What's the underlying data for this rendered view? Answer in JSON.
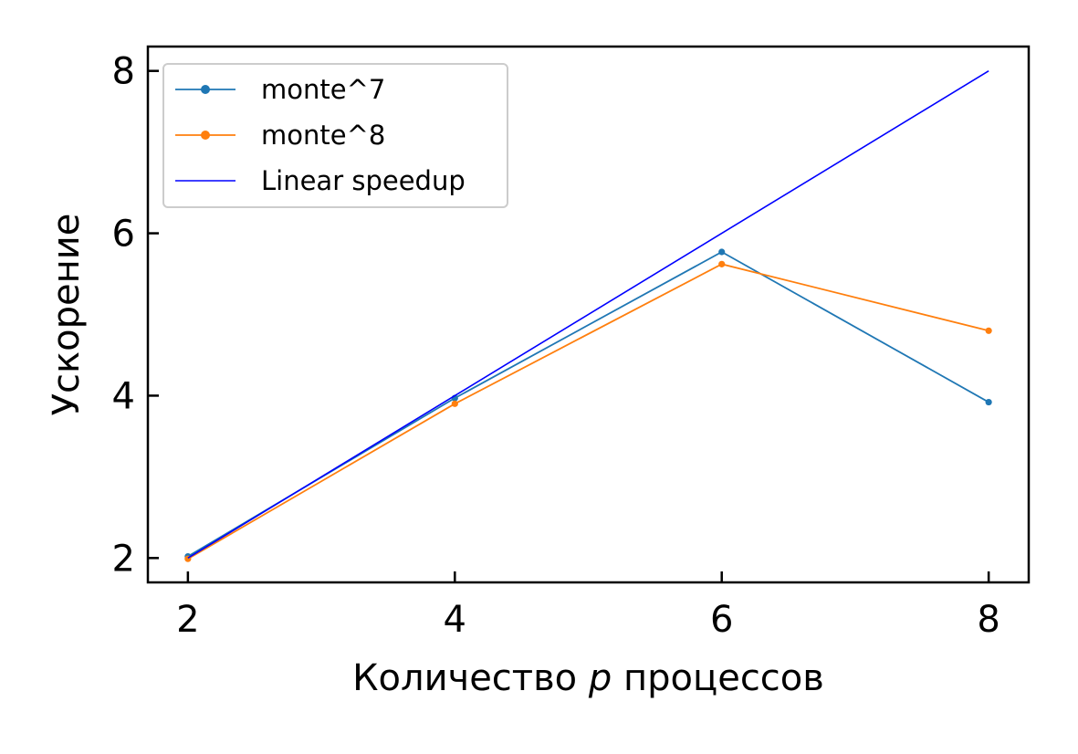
{
  "chart_data": {
    "type": "line",
    "xlabel_parts": {
      "before": "Количество ",
      "italic": "p",
      "after": " процессов"
    },
    "ylabel": "Ускорение",
    "xlim": [
      1.7,
      8.3
    ],
    "ylim": [
      1.7,
      8.3
    ],
    "xticks": [
      "2",
      "4",
      "6",
      "8"
    ],
    "yticks": [
      "2",
      "4",
      "6",
      "8"
    ],
    "grid": false,
    "legend_placement": "top-left",
    "series": [
      {
        "name": "monte^7",
        "color": "#1f77b4",
        "marker": "dot",
        "x": [
          2,
          4,
          6,
          8
        ],
        "y": [
          2.02,
          3.97,
          5.77,
          3.92
        ]
      },
      {
        "name": "monte^8",
        "color": "#ff7f0e",
        "marker": "dot",
        "x": [
          2,
          4,
          6,
          8
        ],
        "y": [
          1.99,
          3.9,
          5.62,
          4.8
        ]
      },
      {
        "name": "Linear speedup",
        "color": "#0000ff",
        "marker": "none",
        "x": [
          2,
          4,
          6,
          8
        ],
        "y": [
          2,
          4,
          6,
          8
        ]
      }
    ]
  }
}
